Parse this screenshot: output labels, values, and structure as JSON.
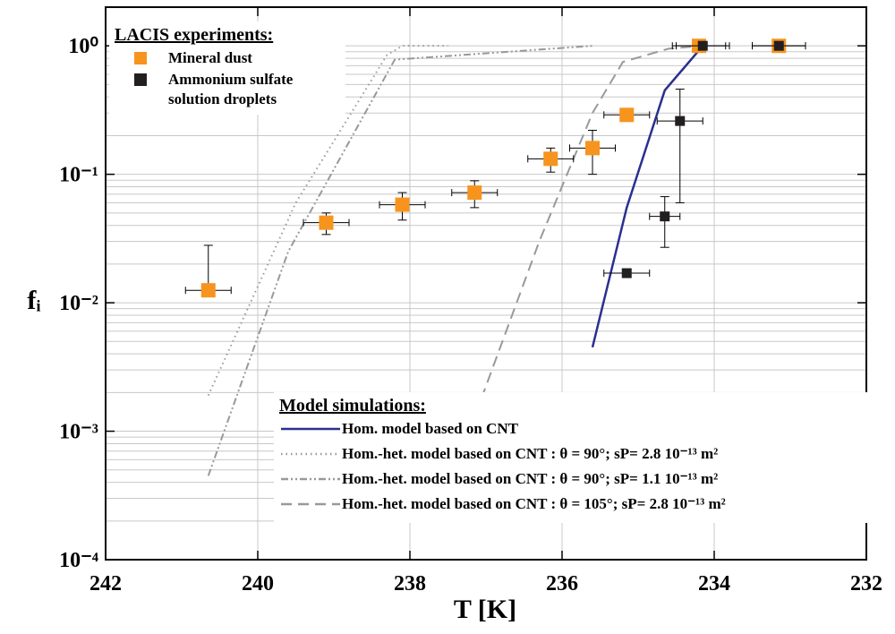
{
  "chart_data": {
    "type": "scatter",
    "x_label": "T [K]",
    "y_label": "fᵢ",
    "xlim": [
      242,
      232
    ],
    "xticks": [
      242,
      240,
      238,
      236,
      234,
      232
    ],
    "ylim": [
      0.0001,
      2
    ],
    "log_y": true,
    "yticks": [
      {
        "value": 0.0001,
        "label": "10⁻⁴"
      },
      {
        "value": 0.001,
        "label": "10⁻³"
      },
      {
        "value": 0.01,
        "label": "10⁻²"
      },
      {
        "value": 0.1,
        "label": "10⁻¹"
      },
      {
        "value": 1,
        "label": "10⁰"
      }
    ],
    "grid": true,
    "legends": [
      {
        "title": "LACIS experiments:",
        "series": [
          0,
          1
        ]
      },
      {
        "title": "Model simulations:",
        "series": [
          2,
          3,
          4,
          5
        ]
      }
    ],
    "series": [
      {
        "name": "Mineral dust",
        "kind": "points",
        "color": "#f7941d",
        "x": [
          240.65,
          239.1,
          238.1,
          237.15,
          236.15,
          235.6,
          235.15,
          234.2,
          233.15
        ],
        "values": [
          0.0125,
          0.042,
          0.058,
          0.072,
          0.132,
          0.16,
          0.29,
          1,
          1
        ],
        "xerr": [
          0.3,
          0.3,
          0.3,
          0.3,
          0.3,
          0.3,
          0.3,
          0.35,
          0.35
        ],
        "yerr": [
          0.0155,
          0.008,
          0.014,
          0.017,
          0.028,
          0.06,
          0.03,
          0,
          0
        ]
      },
      {
        "name": "Ammonium sulfate solution droplets",
        "kind": "points",
        "color": "#231f20",
        "x": [
          235.15,
          234.65,
          234.45,
          234.15,
          233.15
        ],
        "values": [
          0.017,
          0.047,
          0.26,
          1,
          1
        ],
        "xerr": [
          0.3,
          0.2,
          0.3,
          0.35,
          0.35
        ],
        "yerr": [
          0,
          0.02,
          0.2,
          0,
          0
        ]
      },
      {
        "name": "Hom. model based on CNT",
        "kind": "line",
        "color": "#2b2f8f",
        "dash": "solid",
        "x": [
          235.6,
          235.15,
          234.65,
          234.15
        ],
        "values": [
          0.0045,
          0.055,
          0.45,
          1
        ]
      },
      {
        "name": "Hom.-het. model based on CNT : θ =  90°; sP= 2.8 10⁻¹³ m²",
        "kind": "line",
        "color": "#999999",
        "dash": "dotted",
        "x": [
          240.65,
          239.5,
          238.3,
          238.1,
          237.5
        ],
        "values": [
          0.0019,
          0.06,
          0.85,
          1,
          1
        ]
      },
      {
        "name": "Hom.-het. model based on CNT : θ =  90°; sP= 1.1 10⁻¹³ m²",
        "kind": "line",
        "color": "#999999",
        "dash": "dashdotdot",
        "x": [
          240.65,
          239.6,
          238.2,
          236.7,
          235.6
        ],
        "values": [
          0.00045,
          0.025,
          0.78,
          0.9,
          1
        ]
      },
      {
        "name": "Hom.-het. model based on CNT : θ = 105°; sP= 2.8 10⁻¹³ m²",
        "kind": "line",
        "color": "#999999",
        "dash": "dashed",
        "x": [
          237.06,
          236.3,
          235.6,
          235.2,
          234.6,
          234.15
        ],
        "values": [
          0.0018,
          0.03,
          0.3,
          0.75,
          0.95,
          1
        ]
      }
    ]
  }
}
